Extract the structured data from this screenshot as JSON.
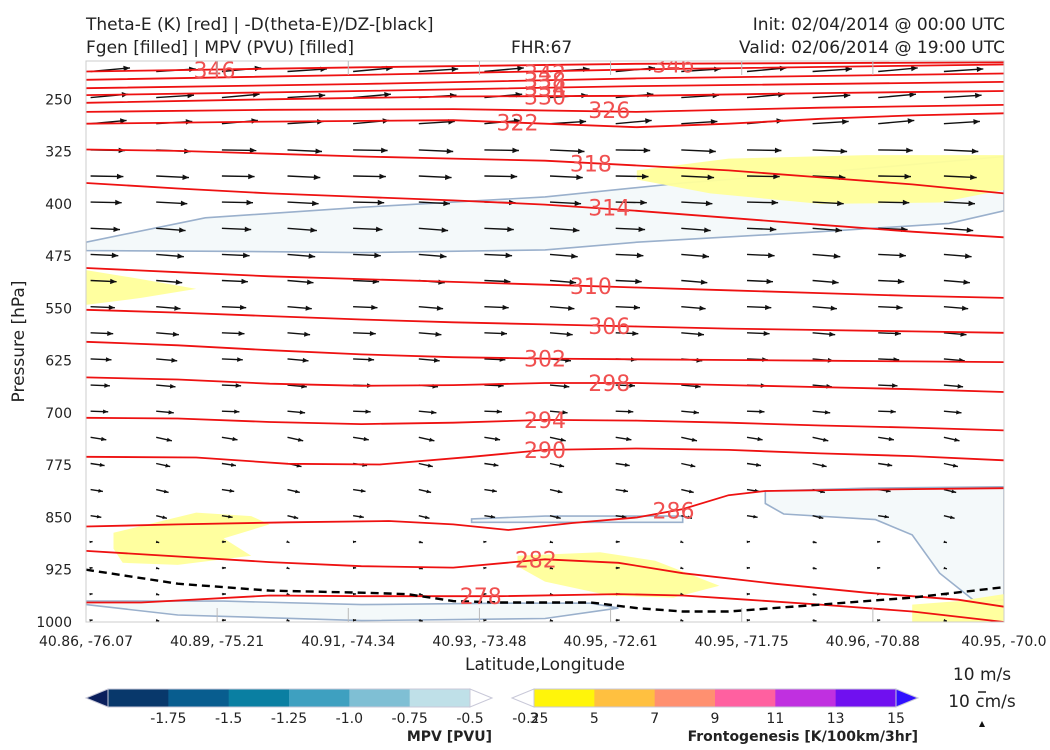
{
  "header": {
    "title_line1": "Theta-E (K) [red] | -D(theta-E)/DZ-[black]",
    "title_line2": "Fgen [filled] | MPV (PVU) [filled]",
    "fhr": "FHR:67",
    "init": "Init: 02/04/2014 @ 00:00 UTC",
    "valid": "Valid: 02/06/2014 @ 19:00 UTC"
  },
  "chart_data": {
    "type": "cross-section",
    "xlabel": "Latitude,Longitude",
    "ylabel": "Pressure [hPa]",
    "x_ticks": [
      "40.86, -76.07",
      "40.89, -75.21",
      "40.91, -74.34",
      "40.93, -73.48",
      "40.95, -72.61",
      "40.95, -71.75",
      "40.96, -70.88",
      "40.95, -70.0"
    ],
    "y_ticks": [
      250,
      325,
      400,
      475,
      550,
      625,
      700,
      775,
      850,
      925,
      1000
    ],
    "ylim": [
      1000,
      195
    ],
    "theta_e_contours": [
      {
        "label": "278",
        "pts": [
          [
            0,
            972
          ],
          [
            0.06,
            972
          ],
          [
            0.2,
            962
          ],
          [
            0.3,
            963
          ],
          [
            0.45,
            963
          ],
          [
            0.58,
            960
          ],
          [
            0.65,
            962
          ],
          [
            0.72,
            968
          ],
          [
            0.8,
            975
          ],
          [
            0.9,
            985
          ],
          [
            1,
            1000
          ]
        ]
      },
      {
        "label": "282",
        "pts": [
          [
            0,
            898
          ],
          [
            0.2,
            914
          ],
          [
            0.3,
            920
          ],
          [
            0.4,
            922
          ],
          [
            0.5,
            910
          ],
          [
            0.58,
            915
          ],
          [
            0.65,
            930
          ],
          [
            0.75,
            945
          ],
          [
            0.85,
            958
          ],
          [
            0.95,
            968
          ],
          [
            1,
            978
          ]
        ]
      },
      {
        "label": "286",
        "pts": [
          [
            0,
            863
          ],
          [
            0.1,
            860
          ],
          [
            0.22,
            857
          ],
          [
            0.33,
            855
          ],
          [
            0.4,
            860
          ],
          [
            0.46,
            868
          ],
          [
            0.53,
            858
          ],
          [
            0.6,
            850
          ],
          [
            0.65,
            838
          ],
          [
            0.7,
            818
          ],
          [
            0.74,
            812
          ],
          [
            0.85,
            810
          ],
          [
            1,
            808
          ]
        ]
      },
      {
        "label": "290",
        "pts": [
          [
            0,
            763
          ],
          [
            0.12,
            764
          ],
          [
            0.22,
            773
          ],
          [
            0.32,
            774
          ],
          [
            0.42,
            763
          ],
          [
            0.5,
            753
          ],
          [
            0.6,
            751
          ],
          [
            0.7,
            753
          ],
          [
            0.8,
            758
          ],
          [
            0.9,
            762
          ],
          [
            1,
            768
          ]
        ]
      },
      {
        "label": "294",
        "pts": [
          [
            0,
            707
          ],
          [
            0.1,
            708
          ],
          [
            0.2,
            713
          ],
          [
            0.3,
            716
          ],
          [
            0.4,
            714
          ],
          [
            0.5,
            710
          ],
          [
            0.6,
            711
          ],
          [
            0.7,
            714
          ],
          [
            0.8,
            718
          ],
          [
            0.9,
            721
          ],
          [
            1,
            725
          ]
        ]
      },
      {
        "label": "298",
        "pts": [
          [
            0,
            649
          ],
          [
            0.1,
            652
          ],
          [
            0.2,
            658
          ],
          [
            0.3,
            661
          ],
          [
            0.4,
            660
          ],
          [
            0.5,
            657
          ],
          [
            0.6,
            657
          ],
          [
            0.7,
            660
          ],
          [
            0.8,
            663
          ],
          [
            0.9,
            666
          ],
          [
            1,
            670
          ]
        ]
      },
      {
        "label": "302",
        "pts": [
          [
            0,
            598
          ],
          [
            0.1,
            603
          ],
          [
            0.2,
            610
          ],
          [
            0.3,
            616
          ],
          [
            0.4,
            620
          ],
          [
            0.5,
            622
          ],
          [
            0.6,
            623
          ],
          [
            0.7,
            624
          ],
          [
            0.8,
            625
          ],
          [
            0.9,
            626
          ],
          [
            1,
            627
          ]
        ]
      },
      {
        "label": "306",
        "pts": [
          [
            0,
            552
          ],
          [
            0.1,
            556
          ],
          [
            0.2,
            561
          ],
          [
            0.3,
            566
          ],
          [
            0.4,
            570
          ],
          [
            0.5,
            573
          ],
          [
            0.6,
            576
          ],
          [
            0.7,
            579
          ],
          [
            0.8,
            581
          ],
          [
            0.9,
            583
          ],
          [
            1,
            585
          ]
        ]
      },
      {
        "label": "310",
        "pts": [
          [
            0,
            492
          ],
          [
            0.1,
            498
          ],
          [
            0.2,
            504
          ],
          [
            0.3,
            508
          ],
          [
            0.4,
            512
          ],
          [
            0.5,
            516
          ],
          [
            0.6,
            520
          ],
          [
            0.7,
            524
          ],
          [
            0.8,
            528
          ],
          [
            0.9,
            532
          ],
          [
            1,
            535
          ]
        ]
      },
      {
        "label": "314",
        "pts": [
          [
            0,
            370
          ],
          [
            0.1,
            378
          ],
          [
            0.2,
            385
          ],
          [
            0.3,
            390
          ],
          [
            0.4,
            395
          ],
          [
            0.5,
            401
          ],
          [
            0.6,
            410
          ],
          [
            0.7,
            420
          ],
          [
            0.8,
            430
          ],
          [
            0.9,
            440
          ],
          [
            1,
            448
          ]
        ]
      },
      {
        "label": "318",
        "pts": [
          [
            0,
            322
          ],
          [
            0.1,
            324
          ],
          [
            0.2,
            328
          ],
          [
            0.3,
            332
          ],
          [
            0.4,
            335
          ],
          [
            0.5,
            338
          ],
          [
            0.6,
            345
          ],
          [
            0.7,
            352
          ],
          [
            0.8,
            362
          ],
          [
            0.9,
            372
          ],
          [
            1,
            385
          ]
        ]
      },
      {
        "label": "322",
        "pts": [
          [
            0,
            285
          ],
          [
            0.2,
            282
          ],
          [
            0.4,
            280
          ],
          [
            0.5,
            285
          ],
          [
            0.6,
            290
          ],
          [
            0.7,
            285
          ],
          [
            0.8,
            278
          ],
          [
            0.9,
            273
          ],
          [
            1,
            270
          ]
        ]
      },
      {
        "label": "326",
        "pts": [
          [
            0,
            268
          ],
          [
            0.2,
            265
          ],
          [
            0.4,
            264
          ],
          [
            0.6,
            268
          ],
          [
            0.8,
            262
          ],
          [
            1,
            258
          ]
        ]
      },
      {
        "label": "330",
        "pts": [
          [
            0,
            255
          ],
          [
            0.2,
            250
          ],
          [
            0.4,
            246
          ],
          [
            0.6,
            245
          ],
          [
            0.8,
            241
          ],
          [
            1,
            238
          ]
        ]
      },
      {
        "label": "334",
        "pts": [
          [
            0,
            244
          ],
          [
            0.3,
            238
          ],
          [
            0.6,
            231
          ],
          [
            1,
            225
          ]
        ]
      },
      {
        "label": "338",
        "pts": [
          [
            0,
            234
          ],
          [
            0.3,
            228
          ],
          [
            0.6,
            220
          ],
          [
            1,
            213
          ]
        ]
      },
      {
        "label": "342",
        "pts": [
          [
            0,
            222
          ],
          [
            0.3,
            215
          ],
          [
            0.6,
            207
          ],
          [
            1,
            200
          ]
        ]
      },
      {
        "label": "346",
        "pts": [
          [
            0,
            210
          ],
          [
            0.3,
            204
          ],
          [
            0.6,
            199
          ],
          [
            1,
            197
          ]
        ]
      }
    ],
    "theta_e_labels": [
      {
        "text": "278",
        "x": 0.43,
        "p": 963
      },
      {
        "text": "282",
        "x": 0.49,
        "p": 910
      },
      {
        "text": "286",
        "x": 0.64,
        "p": 840
      },
      {
        "text": "290",
        "x": 0.5,
        "p": 753
      },
      {
        "text": "294",
        "x": 0.5,
        "p": 710
      },
      {
        "text": "298",
        "x": 0.57,
        "p": 657
      },
      {
        "text": "302",
        "x": 0.5,
        "p": 622
      },
      {
        "text": "306",
        "x": 0.57,
        "p": 575
      },
      {
        "text": "310",
        "x": 0.55,
        "p": 518
      },
      {
        "text": "314",
        "x": 0.57,
        "p": 405
      },
      {
        "text": "318",
        "x": 0.55,
        "p": 342
      },
      {
        "text": "322",
        "x": 0.47,
        "p": 283
      },
      {
        "text": "326",
        "x": 0.57,
        "p": 265
      },
      {
        "text": "330",
        "x": 0.5,
        "p": 246
      },
      {
        "text": "334",
        "x": 0.5,
        "p": 234
      },
      {
        "text": "338",
        "x": 0.5,
        "p": 223
      },
      {
        "text": "342",
        "x": 0.5,
        "p": 212
      },
      {
        "text": "346",
        "x": 0.14,
        "p": 208
      },
      {
        "text": "346",
        "x": 0.64,
        "p": 200
      }
    ],
    "mpv_regions": [
      {
        "level": -0.25,
        "pts": [
          [
            0,
            455
          ],
          [
            0.13,
            420
          ],
          [
            0.3,
            405
          ],
          [
            0.5,
            390
          ],
          [
            0.65,
            370
          ],
          [
            0.8,
            355
          ],
          [
            1,
            332
          ],
          [
            1,
            410
          ],
          [
            0.94,
            428
          ],
          [
            0.8,
            440
          ],
          [
            0.6,
            455
          ],
          [
            0.5,
            466
          ],
          [
            0.3,
            470
          ],
          [
            0.15,
            468
          ],
          [
            0,
            467
          ]
        ]
      },
      {
        "level": -0.25,
        "pts": [
          [
            0.74,
            812
          ],
          [
            0.85,
            808
          ],
          [
            1,
            806
          ],
          [
            1,
            968
          ],
          [
            0.97,
            972
          ],
          [
            0.93,
            930
          ],
          [
            0.9,
            875
          ],
          [
            0.86,
            853
          ],
          [
            0.76,
            845
          ],
          [
            0.74,
            830
          ]
        ]
      },
      {
        "level": -0.25,
        "pts": [
          [
            0.42,
            852
          ],
          [
            0.5,
            848
          ],
          [
            0.65,
            848
          ],
          [
            0.65,
            857
          ],
          [
            0.5,
            857
          ],
          [
            0.42,
            857
          ]
        ]
      },
      {
        "level": -0.25,
        "pts": [
          [
            0,
            975
          ],
          [
            0.1,
            990
          ],
          [
            0.3,
            998
          ],
          [
            0.5,
            995
          ],
          [
            0.58,
            980
          ],
          [
            0.55,
            973
          ],
          [
            0.45,
            973
          ],
          [
            0.3,
            975
          ],
          [
            0.15,
            970
          ],
          [
            0,
            970
          ]
        ]
      }
    ],
    "fgen_regions": [
      {
        "level": 3,
        "pts": [
          [
            0.6,
            352
          ],
          [
            0.7,
            335
          ],
          [
            0.85,
            330
          ],
          [
            1,
            330
          ],
          [
            1,
            380
          ],
          [
            0.93,
            398
          ],
          [
            0.8,
            400
          ],
          [
            0.68,
            385
          ],
          [
            0.6,
            365
          ]
        ]
      },
      {
        "level": 3,
        "pts": [
          [
            0,
            495
          ],
          [
            0.06,
            508
          ],
          [
            0.12,
            522
          ],
          [
            0.06,
            535
          ],
          [
            0,
            545
          ]
        ]
      },
      {
        "level": 3,
        "pts": [
          [
            0.03,
            872
          ],
          [
            0.12,
            843
          ],
          [
            0.18,
            848
          ],
          [
            0.2,
            860
          ],
          [
            0.15,
            880
          ],
          [
            0.18,
            905
          ],
          [
            0.1,
            918
          ],
          [
            0.04,
            915
          ],
          [
            0.03,
            895
          ]
        ]
      },
      {
        "level": 3,
        "pts": [
          [
            0.47,
            905
          ],
          [
            0.56,
            900
          ],
          [
            0.62,
            912
          ],
          [
            0.69,
            948
          ],
          [
            0.64,
            965
          ],
          [
            0.57,
            962
          ],
          [
            0.5,
            942
          ],
          [
            0.47,
            920
          ]
        ]
      },
      {
        "level": 3,
        "pts": [
          [
            0.9,
            975
          ],
          [
            0.95,
            970
          ],
          [
            1,
            960
          ],
          [
            1,
            1000
          ],
          [
            0.9,
            1000
          ]
        ]
      }
    ],
    "dthetae_dz_zero": [
      [
        0,
        925
      ],
      [
        0.05,
        935
      ],
      [
        0.1,
        945
      ],
      [
        0.2,
        955
      ],
      [
        0.3,
        958
      ],
      [
        0.35,
        960
      ],
      [
        0.4,
        970
      ],
      [
        0.45,
        972
      ],
      [
        0.55,
        972
      ],
      [
        0.6,
        980
      ],
      [
        0.65,
        985
      ],
      [
        0.7,
        985
      ],
      [
        0.8,
        975
      ],
      [
        0.9,
        965
      ],
      [
        1,
        950
      ]
    ],
    "wind_vectors": {
      "u_ref": "10 m/s",
      "w_ref": "10 cm/s"
    },
    "colorbars": [
      {
        "name": "MPV [PVU]",
        "ticks": [
          "-1.75",
          "-1.5",
          "-1.25",
          "-1.0",
          "-0.75",
          "-0.5",
          "-0.25"
        ],
        "colors": [
          "#0a1f5c",
          "#08386b",
          "#085d8f",
          "#0a7fa2",
          "#3ea0c0",
          "#7fbfd4",
          "#bfe0e8",
          "#ffffff"
        ]
      },
      {
        "name": "Frontogenesis [K/100km/3hr]",
        "ticks": [
          "3",
          "5",
          "7",
          "9",
          "11",
          "13",
          "15"
        ],
        "colors": [
          "#ffffff",
          "#fff50a",
          "#ffc040",
          "#ff9070",
          "#ff60a0",
          "#c030e0",
          "#7010f0",
          "#3010ff"
        ]
      }
    ]
  }
}
